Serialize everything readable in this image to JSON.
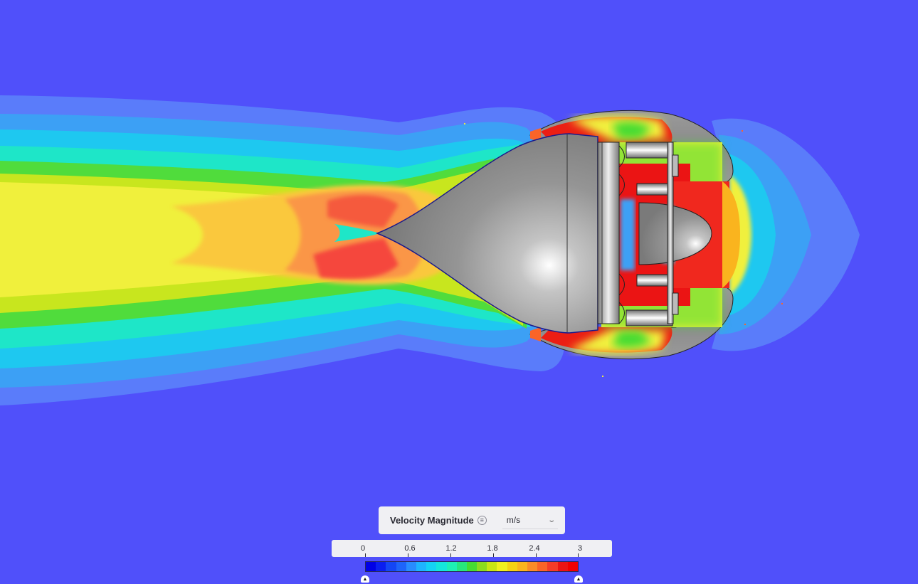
{
  "legend": {
    "title": "Velocity Magnitude",
    "menu_icon": "menu-icon",
    "unit": "m/s",
    "dropdown_icon": "chevron-down-icon",
    "ticks": [
      "0",
      "0.6",
      "1.2",
      "1.8",
      "2.4",
      "3"
    ],
    "range_min": 0,
    "range_max": 3,
    "colors": [
      "#0000e6",
      "#0a1ef0",
      "#1446f5",
      "#1e64fa",
      "#288cff",
      "#1eb4ff",
      "#14d2f5",
      "#14e6dc",
      "#1ef0b4",
      "#28e67d",
      "#46dc32",
      "#8cdc1e",
      "#c8e614",
      "#f0f01e",
      "#f5d214",
      "#fab41e",
      "#fa8c28",
      "#fa6428",
      "#f53c28",
      "#eb1414",
      "#f00000"
    ]
  },
  "viewport": {
    "background_color": "#5050fa",
    "surface_color": "#8c8c8c"
  }
}
